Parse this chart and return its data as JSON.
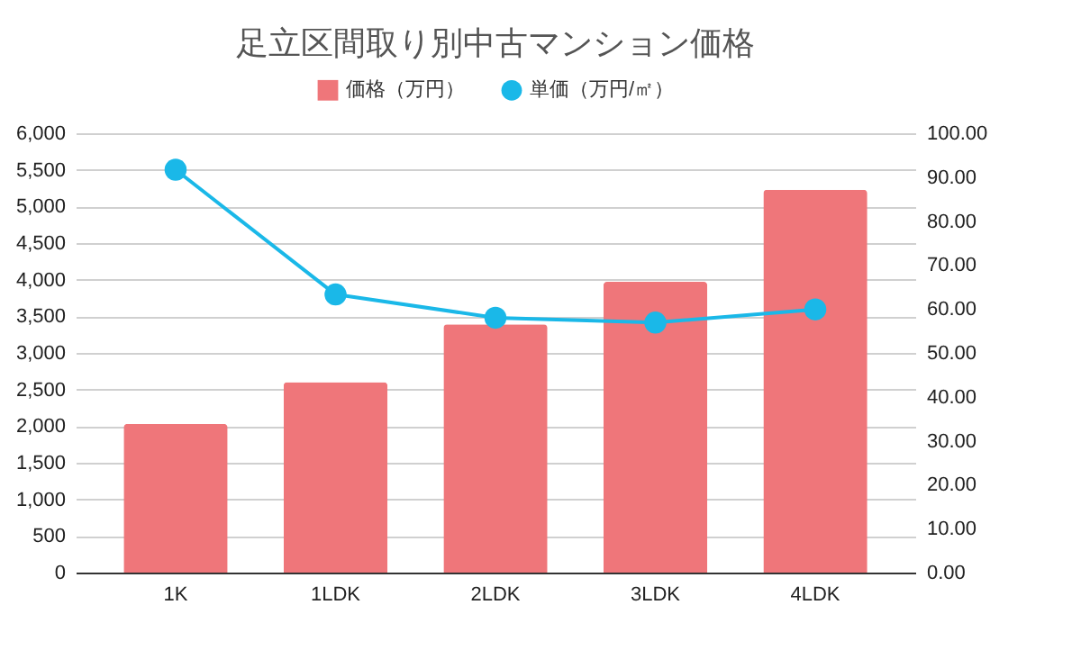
{
  "chart_data": {
    "type": "bar",
    "title": "足立区間取り別中古マンション価格",
    "categories": [
      "1K",
      "1LDK",
      "2LDK",
      "3LDK",
      "4LDK"
    ],
    "series": [
      {
        "name": "価格（万円）",
        "color": "#ef767a",
        "values": [
          2030,
          2600,
          3390,
          3970,
          5230
        ]
      },
      {
        "name": "単価（万円/㎡）",
        "type": "line",
        "axis": "y2",
        "color": "#1ab8e8",
        "values": [
          91.7,
          63.3,
          58.0,
          56.9,
          59.9
        ]
      }
    ],
    "ylim": [
      0,
      6000
    ],
    "yticks": [
      {
        "value": 0,
        "label": "0"
      },
      {
        "value": 500,
        "label": "500"
      },
      {
        "value": 1000,
        "label": "1,000"
      },
      {
        "value": 1500,
        "label": "1,500"
      },
      {
        "value": 2000,
        "label": "2,000"
      },
      {
        "value": 2500,
        "label": "2,500"
      },
      {
        "value": 3000,
        "label": "3,000"
      },
      {
        "value": 3500,
        "label": "3,500"
      },
      {
        "value": 4000,
        "label": "4,000"
      },
      {
        "value": 4500,
        "label": "4,500"
      },
      {
        "value": 5000,
        "label": "5,000"
      },
      {
        "value": 5500,
        "label": "5,500"
      },
      {
        "value": 6000,
        "label": "6,000"
      }
    ],
    "y2lim": [
      0,
      100
    ],
    "y2ticks": [
      {
        "value": 0,
        "label": "0.00"
      },
      {
        "value": 10,
        "label": "10.00"
      },
      {
        "value": 20,
        "label": "20.00"
      },
      {
        "value": 30,
        "label": "30.00"
      },
      {
        "value": 40,
        "label": "40.00"
      },
      {
        "value": 50,
        "label": "50.00"
      },
      {
        "value": 60,
        "label": "60.00"
      },
      {
        "value": 70,
        "label": "70.00"
      },
      {
        "value": 80,
        "label": "80.00"
      },
      {
        "value": 90,
        "label": "90.00"
      },
      {
        "value": 100,
        "label": "100.00"
      }
    ],
    "grid": "y",
    "legend": "top",
    "marker": "circle"
  }
}
